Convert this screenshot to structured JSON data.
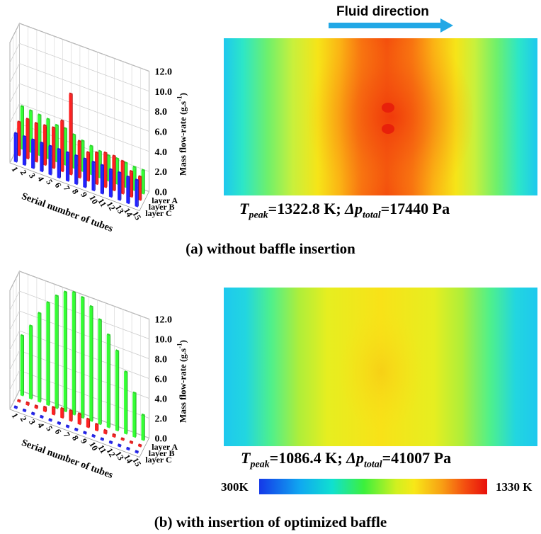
{
  "figure": {
    "fluid_direction_label": "Fluid direction",
    "panel_a": {
      "caption": "(a) without baffle insertion",
      "result": {
        "t_symbol": "T",
        "t_sub": "peak",
        "t_value": "=1322.8 K; ",
        "dp_symbol": "Δp",
        "dp_sub": "total",
        "dp_value": "=17440 Pa"
      }
    },
    "panel_b": {
      "caption": "(b) with insertion of optimized baffle",
      "result": {
        "t_symbol": "T",
        "t_sub": "peak",
        "t_value": "=1086.4 K; ",
        "dp_symbol": "Δp",
        "dp_sub": "total",
        "dp_value": "=41007 Pa"
      }
    },
    "colorbar": {
      "min_label": "300K",
      "max_label": "1330 K",
      "min_value": 300,
      "max_value": 1330
    }
  },
  "chart_data": [
    {
      "type": "bar3d",
      "panel": "a",
      "xlabel": "Serial number of tubes",
      "zlabel": "Mass flow-rate (g.s",
      "zlabel_exp": "-1",
      "zlabel_close": ")",
      "x_ticks": [
        "1",
        "2",
        "3",
        "4",
        "5",
        "6",
        "7",
        "8",
        "9",
        "10",
        "11",
        "12",
        "13",
        "14",
        "15"
      ],
      "z_ticks": [
        "0.0",
        "2.0",
        "4.0",
        "6.0",
        "8.0",
        "10.0",
        "12.0"
      ],
      "zlim": [
        0,
        12
      ],
      "layers": [
        "layer A",
        "layer B",
        "layer C"
      ],
      "series": [
        {
          "name": "layer A",
          "color": "#33ff33",
          "values": [
            4.2,
            4.1,
            4.0,
            3.9,
            3.6,
            3.6,
            3.3,
            3.0,
            2.8,
            2.6,
            2.5,
            2.5,
            2.4,
            2.3,
            2.3
          ]
        },
        {
          "name": "layer B",
          "color": "#ff2020",
          "values": [
            3.3,
            3.9,
            3.8,
            3.9,
            4.0,
            5.0,
            8.0,
            3.6,
            2.8,
            3.1,
            3.4,
            3.4,
            3.2,
            2.5,
            2.3
          ]
        },
        {
          "name": "layer C",
          "color": "#2222ff",
          "values": [
            2.8,
            2.8,
            2.8,
            2.8,
            2.8,
            2.8,
            2.8,
            2.8,
            2.8,
            2.8,
            2.8,
            2.7,
            2.7,
            2.6,
            2.6
          ]
        }
      ]
    },
    {
      "type": "bar3d",
      "panel": "b",
      "xlabel": "Serial number of tubes",
      "zlabel": "Mass flow-rate (g.s",
      "zlabel_exp": "-1",
      "zlabel_close": ")",
      "x_ticks": [
        "1",
        "2",
        "3",
        "4",
        "5",
        "6",
        "7",
        "8",
        "9",
        "10",
        "11",
        "12",
        "13",
        "14",
        "15"
      ],
      "z_ticks": [
        "0.0",
        "2.0",
        "4.0",
        "6.0",
        "8.0",
        "10.0",
        "12.0"
      ],
      "zlim": [
        0,
        12
      ],
      "layers": [
        "layer A",
        "layer B",
        "layer C"
      ],
      "series": [
        {
          "name": "layer A",
          "color": "#33ff33",
          "values": [
            6.0,
            7.3,
            8.9,
            10.3,
            11.3,
            12.0,
            12.3,
            12.1,
            11.5,
            10.5,
            9.3,
            8.0,
            6.2,
            4.4,
            2.5
          ]
        },
        {
          "name": "layer B",
          "color": "#ff2020",
          "values": [
            0.1,
            0.2,
            0.2,
            0.4,
            0.7,
            0.9,
            1.0,
            1.0,
            0.8,
            0.6,
            0.3,
            0.2,
            0.1,
            0.1,
            0.1
          ]
        },
        {
          "name": "layer C",
          "color": "#2222ff",
          "values": [
            0.1,
            0.1,
            0.1,
            0.1,
            0.1,
            0.1,
            0.1,
            0.1,
            0.1,
            0.1,
            0.1,
            0.1,
            0.1,
            0.1,
            0.1
          ]
        }
      ]
    }
  ]
}
